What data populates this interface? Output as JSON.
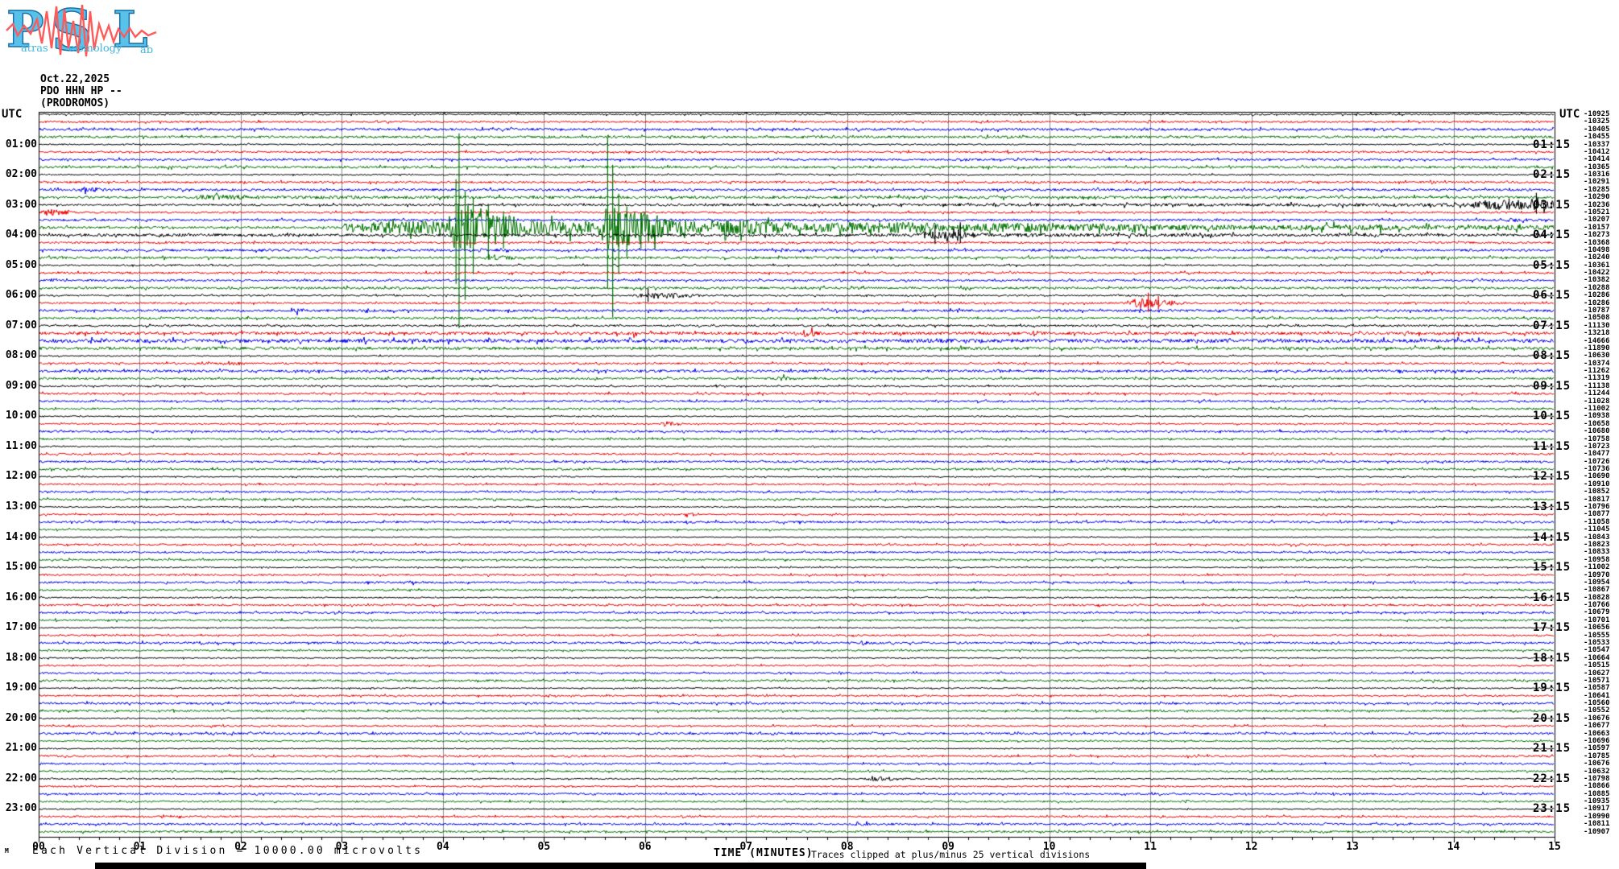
{
  "logo": {
    "p": "P",
    "s": "S",
    "l": "L",
    "p_word": "atras",
    "s_word": "eismology",
    "l_word": "ab"
  },
  "header": {
    "date": "Oct.22,2025",
    "station": "PDO HHN HP --",
    "site": "(PRODROMOS)"
  },
  "axis": {
    "utc_left": "UTC",
    "utc_right": "UTC",
    "xlabel": "TIME (MINUTES)",
    "clip_note": "Traces clipped at plus/minus 25 vertical divisions",
    "scale_note": "Each Vertical Division = 10000.00 microvolts",
    "corner_mark": "M",
    "x_tick_labels": [
      "00",
      "01",
      "02",
      "03",
      "04",
      "05",
      "06",
      "07",
      "08",
      "09",
      "10",
      "11",
      "12",
      "13",
      "14",
      "15"
    ]
  },
  "chart_data": {
    "type": "line",
    "subtype": "helicorder-seismogram",
    "station": "PDO HHN HP --",
    "site": "(PRODROMOS)",
    "date": "Oct.22,2025",
    "minutes_per_line": 15,
    "rows": 96,
    "row_color_cycle": [
      "#000000",
      "#ee0000",
      "#0000ee",
      "#007200"
    ],
    "left_hour_labels": [
      "01:00",
      "02:00",
      "03:00",
      "04:00",
      "05:00",
      "06:00",
      "07:00",
      "08:00",
      "09:00",
      "10:00",
      "11:00",
      "12:00",
      "13:00",
      "14:00",
      "15:00",
      "16:00",
      "17:00",
      "18:00",
      "19:00",
      "20:00",
      "21:00",
      "22:00",
      "23:00"
    ],
    "right_hour_labels": [
      "01:15",
      "02:15",
      "03:15",
      "04:15",
      "05:15",
      "06:15",
      "07:15",
      "08:15",
      "09:15",
      "10:15",
      "11:15",
      "12:15",
      "13:15",
      "14:15",
      "15:15",
      "16:15",
      "17:15",
      "18:15",
      "19:15",
      "20:15",
      "21:15",
      "22:15",
      "23:15"
    ],
    "trace_offsets": [
      -10925,
      -10325,
      -10405,
      -10455,
      -10337,
      -10412,
      -10414,
      -10365,
      -10316,
      -10291,
      -10285,
      -10290,
      -10236,
      -10521,
      -10207,
      -10157,
      -10273,
      -10368,
      -10498,
      -10240,
      -10361,
      -10422,
      -10382,
      -10288,
      -10286,
      -10286,
      -10787,
      -10508,
      -11130,
      -13218,
      -14666,
      -11890,
      -10630,
      -10374,
      -11262,
      -11319,
      -11138,
      -11244,
      -11028,
      -11002,
      -10938,
      -10658,
      -10680,
      -10758,
      -10723,
      -10477,
      -10726,
      -10736,
      -10690,
      -10910,
      -10852,
      -10817,
      -10796,
      -10877,
      -11058,
      -11045,
      -10843,
      -10823,
      -10833,
      -10958,
      -11002,
      -10970,
      -10954,
      -10867,
      -10828,
      -10766,
      -10679,
      -10701,
      -10656,
      -10555,
      -10533,
      -10547,
      -10664,
      -10515,
      -10627,
      -10571,
      -10587,
      -10641,
      -10560,
      -10552,
      -10676,
      -10677,
      -10663,
      -10696,
      -10597,
      -10785,
      -10676,
      -10632,
      -10798,
      -10866,
      -10885,
      -10935,
      -10917,
      -10990,
      -10811,
      -10907
    ],
    "events": [
      {
        "row": 10,
        "type": "burst",
        "start": 0.38,
        "end": 0.72,
        "amp": 4
      },
      {
        "row": 11,
        "type": "profile",
        "points": [
          [
            0,
            1.3
          ],
          [
            1.5,
            1.3
          ],
          [
            1.62,
            3.6
          ],
          [
            2.3,
            2.0
          ],
          [
            5,
            1.8
          ],
          [
            9.3,
            1.7
          ],
          [
            9.42,
            3.0
          ],
          [
            9.6,
            1.7
          ],
          [
            15,
            1.5
          ]
        ]
      },
      {
        "row": 12,
        "type": "profile",
        "points": [
          [
            0,
            1.0
          ],
          [
            4,
            1.3
          ],
          [
            8,
            1.6
          ],
          [
            12,
            1.9
          ],
          [
            14.1,
            2.2
          ],
          [
            14.3,
            5.5
          ],
          [
            14.75,
            6.5
          ],
          [
            15,
            6.0
          ]
        ]
      },
      {
        "row": 13,
        "type": "burst",
        "start": 0.0,
        "end": 0.4,
        "amp": 4.5
      },
      {
        "row": 14,
        "type": "burst",
        "start": 14.45,
        "end": 15,
        "amp": 2.6
      },
      {
        "row": 15,
        "type": "profile",
        "points": [
          [
            0,
            1.3
          ],
          [
            3.0,
            1.3
          ],
          [
            3.08,
            6
          ],
          [
            3.6,
            8
          ],
          [
            4.05,
            9
          ],
          [
            4.1,
            28
          ],
          [
            4.45,
            24
          ],
          [
            4.75,
            12
          ],
          [
            5.1,
            8
          ],
          [
            5.55,
            9
          ],
          [
            5.63,
            28
          ],
          [
            5.95,
            22
          ],
          [
            6.2,
            10
          ],
          [
            6.6,
            7.5
          ],
          [
            7.1,
            8.5
          ],
          [
            7.6,
            5.5
          ],
          [
            8.6,
            7
          ],
          [
            9.1,
            4.5
          ],
          [
            9.7,
            6
          ],
          [
            10.1,
            4
          ],
          [
            10.5,
            5
          ],
          [
            11.2,
            3.5
          ],
          [
            12,
            3
          ],
          [
            13.3,
            3.8
          ],
          [
            14,
            2.6
          ],
          [
            14.6,
            3.2
          ],
          [
            15,
            2.6
          ]
        ]
      },
      {
        "row": 16,
        "type": "profile",
        "points": [
          [
            0,
            1.7
          ],
          [
            8.6,
            1.7
          ],
          [
            8.75,
            5
          ],
          [
            9.1,
            4.5
          ],
          [
            9.4,
            2.2
          ],
          [
            12,
            1.8
          ],
          [
            15,
            1.6
          ]
        ]
      },
      {
        "row": 19,
        "type": "burst",
        "start": 4.38,
        "end": 4.9,
        "amp": 4
      },
      {
        "row": 24,
        "type": "burst",
        "start": 5.9,
        "end": 6.65,
        "amp": 4.5
      },
      {
        "row": 25,
        "type": "burst",
        "start": 10.75,
        "end": 11.38,
        "amp": 6.5
      },
      {
        "row": 26,
        "type": "burst",
        "start": 2.45,
        "end": 2.72,
        "amp": 4
      },
      {
        "row": 29,
        "type": "burst",
        "start": 5.8,
        "end": 6.05,
        "amp": 3.5
      },
      {
        "row": 29,
        "type": "burst",
        "start": 7.5,
        "end": 7.88,
        "amp": 5
      },
      {
        "row": 33,
        "type": "burst",
        "start": 1.78,
        "end": 2.15,
        "amp": 3
      },
      {
        "row": 35,
        "type": "burst",
        "start": 7.25,
        "end": 7.62,
        "amp": 3
      },
      {
        "row": 41,
        "type": "burst",
        "start": 6.12,
        "end": 6.42,
        "amp": 3.5
      },
      {
        "row": 53,
        "type": "burst",
        "start": 6.35,
        "end": 6.6,
        "amp": 3.5
      },
      {
        "row": 62,
        "type": "burst",
        "start": 3.58,
        "end": 3.8,
        "amp": 3
      },
      {
        "row": 70,
        "type": "burst",
        "start": 8.08,
        "end": 8.35,
        "amp": 3
      },
      {
        "row": 88,
        "type": "burst",
        "start": 8.15,
        "end": 8.7,
        "amp": 3.5
      },
      {
        "row": 94,
        "type": "burst",
        "start": 8.05,
        "end": 8.3,
        "amp": 3
      }
    ],
    "spikes": [
      {
        "row": 15,
        "min": 4.13,
        "up": 60,
        "down": 70
      },
      {
        "row": 15,
        "min": 4.16,
        "up": 117,
        "down": 125
      },
      {
        "row": 15,
        "min": 4.22,
        "up": 45,
        "down": 90
      },
      {
        "row": 15,
        "min": 4.3,
        "up": 38,
        "down": 58
      },
      {
        "row": 15,
        "min": 4.45,
        "up": 28,
        "down": 40
      },
      {
        "row": 15,
        "min": 4.6,
        "up": 20,
        "down": 26
      },
      {
        "row": 15,
        "min": 5.63,
        "up": 112,
        "down": 76
      },
      {
        "row": 15,
        "min": 5.68,
        "up": 78,
        "down": 112
      },
      {
        "row": 15,
        "min": 5.74,
        "up": 42,
        "down": 58
      },
      {
        "row": 15,
        "min": 5.82,
        "up": 26,
        "down": 36
      },
      {
        "row": 15,
        "min": 5.96,
        "up": 18,
        "down": 26
      },
      {
        "row": 12,
        "min": 14.55,
        "up": 8,
        "down": 6
      },
      {
        "row": 12,
        "min": 14.82,
        "up": 15,
        "down": 11
      },
      {
        "row": 16,
        "min": 8.87,
        "up": 12,
        "down": 11
      },
      {
        "row": 16,
        "min": 9.12,
        "up": 16,
        "down": 10
      },
      {
        "row": 24,
        "min": 6.03,
        "up": 9,
        "down": 8
      },
      {
        "row": 25,
        "min": 10.98,
        "up": 13,
        "down": 11
      },
      {
        "row": 25,
        "min": 11.08,
        "up": 9,
        "down": 8
      }
    ]
  }
}
